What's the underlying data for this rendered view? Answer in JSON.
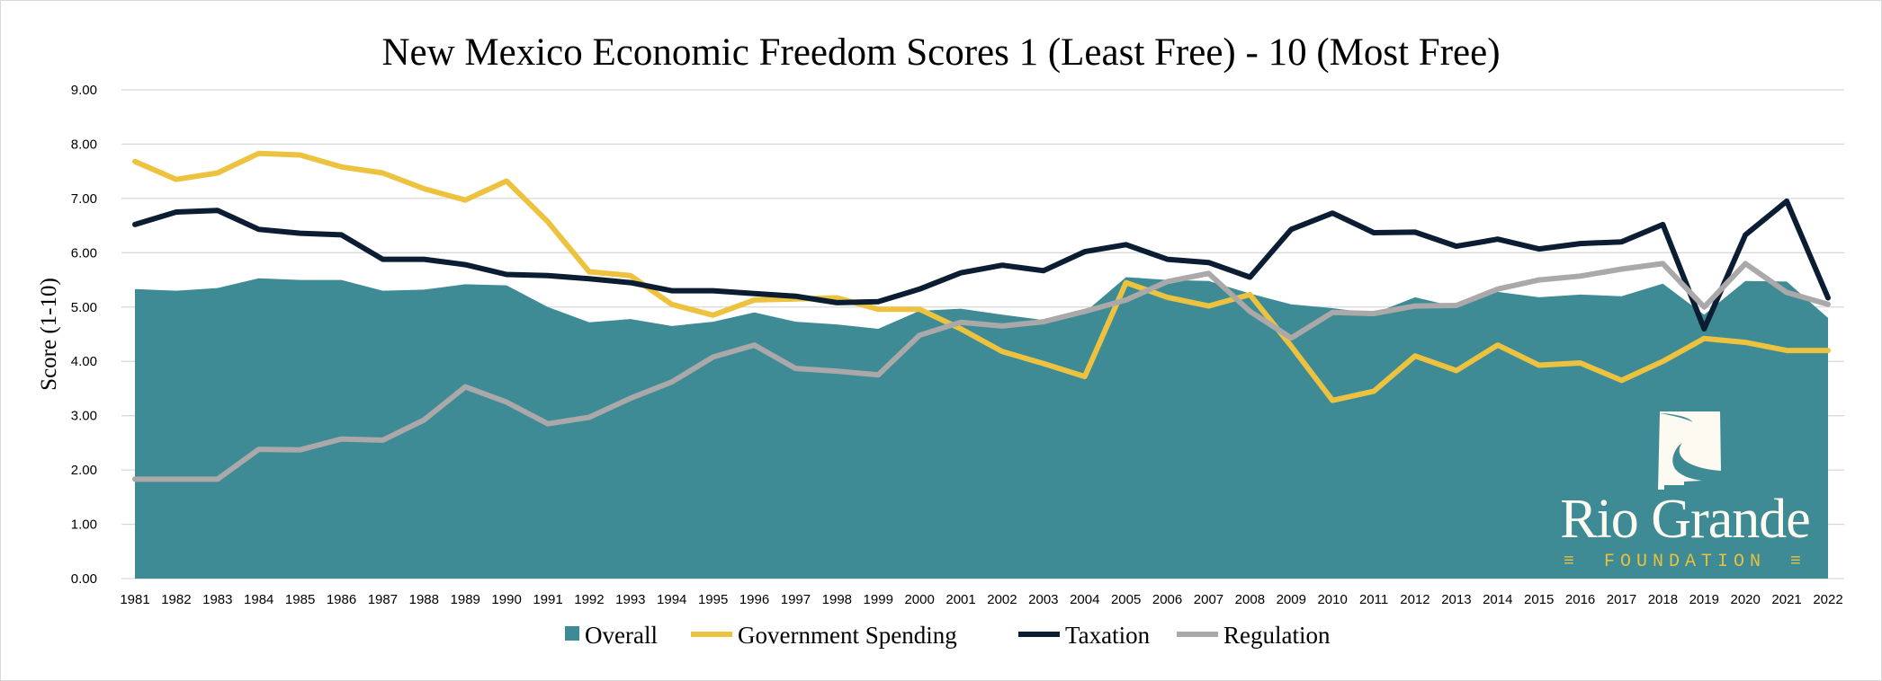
{
  "chart_data": {
    "type": "area+line",
    "title": "New Mexico Economic Freedom Scores 1 (Least Free) - 10 (Most Free)",
    "xlabel": "",
    "ylabel": "Score (1-10)",
    "ylim": [
      0,
      9
    ],
    "yticks": [
      "0.00",
      "1.00",
      "2.00",
      "3.00",
      "4.00",
      "5.00",
      "6.00",
      "7.00",
      "8.00",
      "9.00"
    ],
    "grid": true,
    "legend": "bottom",
    "categories": [
      "1981",
      "1982",
      "1983",
      "1984",
      "1985",
      "1986",
      "1987",
      "1988",
      "1989",
      "1990",
      "1991",
      "1992",
      "1993",
      "1994",
      "1995",
      "1996",
      "1997",
      "1998",
      "1999",
      "2000",
      "2001",
      "2002",
      "2003",
      "2004",
      "2005",
      "2006",
      "2007",
      "2008",
      "2009",
      "2010",
      "2011",
      "2012",
      "2013",
      "2014",
      "2015",
      "2016",
      "2017",
      "2018",
      "2019",
      "2020",
      "2021",
      "2022"
    ],
    "series": [
      {
        "name": "Overall",
        "kind": "area",
        "color": "#3e8a95",
        "values": [
          5.33,
          5.3,
          5.35,
          5.53,
          5.5,
          5.5,
          5.3,
          5.32,
          5.42,
          5.4,
          5.0,
          4.72,
          4.78,
          4.65,
          4.73,
          4.9,
          4.73,
          4.68,
          4.6,
          4.93,
          4.97,
          4.86,
          4.76,
          4.9,
          5.55,
          5.5,
          5.48,
          5.25,
          5.05,
          4.98,
          4.88,
          5.18,
          5.0,
          5.28,
          5.18,
          5.23,
          5.2,
          5.43,
          4.86,
          5.48,
          5.47,
          4.8
        ]
      },
      {
        "name": "Government Spending",
        "kind": "line",
        "color": "#ecc23f",
        "values": [
          7.68,
          7.35,
          7.47,
          7.83,
          7.8,
          7.58,
          7.47,
          7.18,
          6.97,
          7.32,
          6.57,
          5.65,
          5.58,
          5.05,
          4.85,
          5.13,
          5.15,
          5.17,
          4.96,
          4.96,
          4.6,
          4.18,
          3.96,
          3.72,
          5.45,
          5.18,
          5.02,
          5.23,
          4.28,
          3.28,
          3.45,
          4.1,
          3.83,
          4.3,
          3.93,
          3.97,
          3.65,
          4.0,
          4.42,
          4.35,
          4.2,
          4.2
        ]
      },
      {
        "name": "Taxation",
        "kind": "line",
        "color": "#0b1d33",
        "values": [
          6.52,
          6.75,
          6.78,
          6.43,
          6.36,
          6.33,
          5.88,
          5.88,
          5.78,
          5.6,
          5.58,
          5.52,
          5.45,
          5.3,
          5.3,
          5.25,
          5.2,
          5.08,
          5.1,
          5.33,
          5.63,
          5.77,
          5.67,
          6.02,
          6.15,
          5.88,
          5.82,
          5.55,
          6.43,
          6.73,
          6.37,
          6.38,
          6.12,
          6.25,
          6.07,
          6.17,
          6.2,
          6.52,
          4.6,
          6.33,
          6.95,
          5.17
        ]
      },
      {
        "name": "Regulation",
        "kind": "line",
        "color": "#aaa8a8",
        "values": [
          1.83,
          1.83,
          1.83,
          2.38,
          2.37,
          2.57,
          2.55,
          2.92,
          3.53,
          3.25,
          2.85,
          2.97,
          3.32,
          3.62,
          4.08,
          4.3,
          3.87,
          3.82,
          3.75,
          4.48,
          4.72,
          4.65,
          4.73,
          4.92,
          5.13,
          5.47,
          5.62,
          4.92,
          4.43,
          4.9,
          4.88,
          5.02,
          5.03,
          5.33,
          5.5,
          5.57,
          5.7,
          5.8,
          5.0,
          5.8,
          5.27,
          5.05
        ]
      }
    ]
  },
  "logo": {
    "name": "Rio Grande",
    "sub": "FOUNDATION",
    "sub_marks": "≡"
  }
}
